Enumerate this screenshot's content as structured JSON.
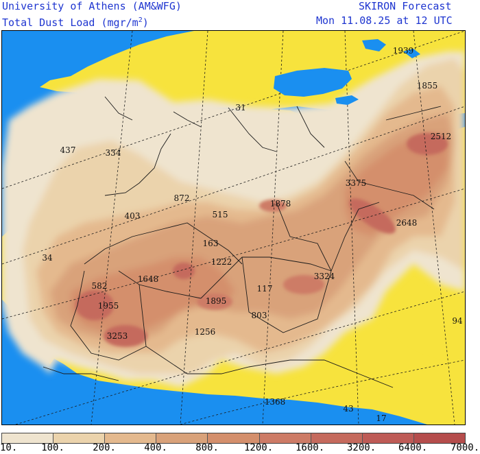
{
  "header": {
    "institution": "University of Athens (AM&WFG)",
    "product": "Total Dust Load (mgr/m",
    "product_sup": "2",
    "product_end": ")",
    "model": "SKIRON Forecast",
    "valid_time": "Mon 11.08.25 at 12 UTC"
  },
  "colors": {
    "sea": "#1a8ff0",
    "dry_land": "#f7e33d",
    "borders": "#1a1a1a",
    "graticule": "#1a1a1a"
  },
  "legend": {
    "breaks": [
      "10.",
      "100.",
      "200.",
      "400.",
      "800.",
      "1200.",
      "1600.",
      "3200.",
      "6400.",
      "7000."
    ],
    "colors": [
      "#efe4cf",
      "#ebd3ac",
      "#e4b98e",
      "#d9a27a",
      "#d48f6c",
      "#cd7b66",
      "#c56a5d",
      "#be5b56",
      "#b54d4c"
    ]
  },
  "map_values": [
    {
      "label": "1939"
    },
    {
      "label": "1855"
    },
    {
      "label": "2512"
    },
    {
      "label": "3375"
    },
    {
      "label": "2648"
    },
    {
      "label": "1878"
    },
    {
      "label": "3324"
    },
    {
      "label": "437"
    },
    {
      "label": "334"
    },
    {
      "label": "872"
    },
    {
      "label": "515"
    },
    {
      "label": "403"
    },
    {
      "label": "163"
    },
    {
      "label": "1222"
    },
    {
      "label": "34"
    },
    {
      "label": "582"
    },
    {
      "label": "1648"
    },
    {
      "label": "1955"
    },
    {
      "label": "1895"
    },
    {
      "label": "117"
    },
    {
      "label": "803"
    },
    {
      "label": "3253"
    },
    {
      "label": "1256"
    },
    {
      "label": "31"
    },
    {
      "label": "94"
    },
    {
      "label": "1368"
    },
    {
      "label": "43"
    },
    {
      "label": "17"
    }
  ]
}
